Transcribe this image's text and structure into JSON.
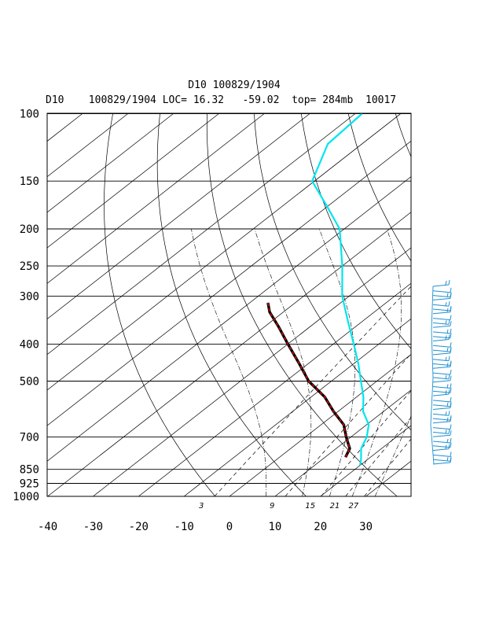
{
  "chart_data": {
    "type": "skew-t log-p sounding",
    "title": "D10 100829/1904",
    "subtitle": "D10    100829/1904 LOC= 16.32   -59.02  top= 284mb  10017",
    "pressure_ticks": [
      100,
      150,
      200,
      250,
      300,
      400,
      500,
      700,
      850,
      925,
      1000
    ],
    "pressure_range_mb": [
      1000,
      100
    ],
    "temperature_ticks": [
      -40,
      -30,
      -20,
      -10,
      0,
      10,
      20,
      30
    ],
    "temperature_range_c": [
      -40,
      40
    ],
    "mixing_ratio_labels": [
      "3",
      "9",
      "15",
      "21",
      "27"
    ],
    "mixing_ratios_gkg": [
      3,
      9,
      15,
      21,
      27
    ],
    "dry_adiabats_k": [
      270,
      290,
      310,
      330,
      350,
      370,
      390,
      410,
      430,
      450,
      470,
      490
    ],
    "moist_adiabats_c": [
      8,
      16,
      22,
      27,
      32
    ],
    "series": [
      {
        "name": "temperature",
        "color": "#00e5ee",
        "points": [
          [
            100,
            -78.5
          ],
          [
            120,
            -77.5
          ],
          [
            150,
            -70.5
          ],
          [
            175,
            -60
          ],
          [
            200,
            -51
          ],
          [
            250,
            -40
          ],
          [
            300,
            -31.5
          ],
          [
            350,
            -23
          ],
          [
            400,
            -15.5
          ],
          [
            450,
            -9
          ],
          [
            500,
            -3.5
          ],
          [
            550,
            1.5
          ],
          [
            600,
            5.5
          ],
          [
            650,
            10.5
          ],
          [
            700,
            13.5
          ],
          [
            750,
            15.5
          ],
          [
            800,
            18.5
          ],
          [
            830,
            20
          ]
        ]
      },
      {
        "name": "dewpoint",
        "color": "#d40000",
        "points": [
          [
            312,
            -46
          ],
          [
            330,
            -43
          ],
          [
            360,
            -37
          ],
          [
            400,
            -30
          ],
          [
            450,
            -22
          ],
          [
            500,
            -15
          ],
          [
            550,
            -7
          ],
          [
            600,
            -1
          ],
          [
            650,
            5
          ],
          [
            700,
            9
          ],
          [
            750,
            13
          ],
          [
            790,
            14.5
          ]
        ]
      }
    ],
    "wind_profile_color": "#1f8fcf",
    "wind_barbs_count": 40
  }
}
